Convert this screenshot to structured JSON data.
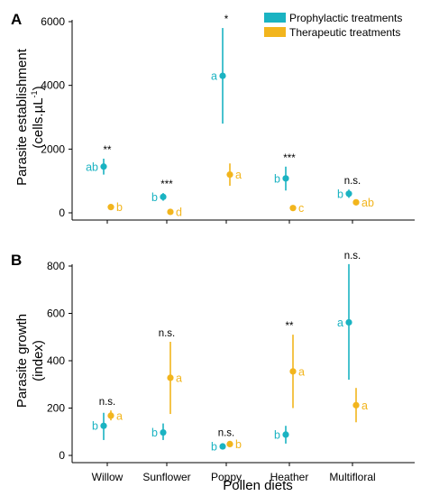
{
  "colors": {
    "prophylactic": "#1AB3C2",
    "therapeutic": "#F2B51D",
    "axis": "#000000"
  },
  "legend": {
    "placement": "top-right",
    "items": [
      {
        "label": "Prophylactic treatments",
        "color": "#1AB3C2"
      },
      {
        "label": "Therapeutic treatments",
        "color": "#F2B51D"
      }
    ]
  },
  "xlabel": "Pollen diets",
  "chart_data": [
    {
      "type": "scatter",
      "panel": "A",
      "ylabel_lines": [
        "Parasite establishment",
        "(cells.µL"
      ],
      "ylabel_sup": "-1",
      "ylabel_tail": ")",
      "categories": [
        "Willow",
        "Sunflower",
        "Poppy",
        "Heather",
        "Multifloral"
      ],
      "ylim": [
        0,
        6000
      ],
      "yticks": [
        0,
        2000,
        4000,
        6000
      ],
      "grid": false,
      "series": [
        {
          "name": "Prophylactic treatments",
          "values": [
            1450,
            500,
            4300,
            1080,
            600
          ],
          "lower": [
            1200,
            380,
            2800,
            700,
            470
          ],
          "upper": [
            1700,
            620,
            5800,
            1450,
            730
          ],
          "letters": [
            "ab",
            "b",
            "a",
            "b",
            "b"
          ]
        },
        {
          "name": "Therapeutic treatments",
          "values": [
            180,
            30,
            1200,
            150,
            330
          ],
          "lower": [
            140,
            15,
            850,
            120,
            270
          ],
          "upper": [
            220,
            50,
            1550,
            180,
            400
          ],
          "letters": [
            "b",
            "d",
            "a",
            "c",
            "ab"
          ]
        }
      ],
      "significance": [
        "**",
        "***",
        "*",
        "***",
        "n.s."
      ]
    },
    {
      "type": "scatter",
      "panel": "B",
      "ylabel_lines": [
        "Parasite growth",
        "(index)"
      ],
      "categories": [
        "Willow",
        "Sunflower",
        "Poppy",
        "Heather",
        "Multifloral"
      ],
      "ylim": [
        0,
        800
      ],
      "yticks": [
        0,
        200,
        400,
        600,
        800
      ],
      "grid": false,
      "series": [
        {
          "name": "Prophylactic treatments",
          "values": [
            125,
            97,
            38,
            88,
            562
          ],
          "lower": [
            65,
            65,
            28,
            50,
            320
          ],
          "upper": [
            180,
            135,
            48,
            125,
            808
          ],
          "letters": [
            "b",
            "b",
            "b",
            "b",
            "a"
          ]
        },
        {
          "name": "Therapeutic treatments",
          "values": [
            168,
            328,
            48,
            355,
            212
          ],
          "lower": [
            148,
            175,
            38,
            200,
            140
          ],
          "upper": [
            190,
            480,
            60,
            510,
            285
          ],
          "letters": [
            "a",
            "a",
            "b",
            "a",
            "a"
          ]
        }
      ],
      "significance": [
        "n.s.",
        "n.s.",
        "n.s.",
        "**",
        "n.s."
      ]
    }
  ]
}
